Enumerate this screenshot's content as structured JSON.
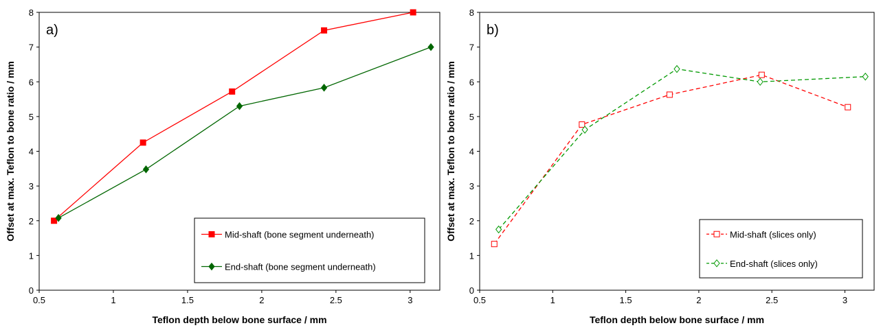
{
  "chart_data": [
    {
      "type": "line",
      "annotation": "a)",
      "xlabel": "Teflon depth below bone surface / mm",
      "ylabel": "Offset at max. Teflon to bone ratio / mm",
      "xlim": [
        0.5,
        3.2
      ],
      "xticks": [
        0.5,
        1,
        1.5,
        2,
        2.5,
        3
      ],
      "ylim": [
        0,
        8
      ],
      "yticks": [
        0,
        1,
        2,
        3,
        4,
        5,
        6,
        7,
        8
      ],
      "legend": "lower right",
      "series": [
        {
          "name": "Mid-shaft (bone segment underneath)",
          "color": "#ff0000",
          "marker": "square",
          "filled": true,
          "dashed": false,
          "x": [
            0.6,
            1.2,
            1.8,
            2.42,
            3.02
          ],
          "values": [
            2.0,
            4.25,
            5.72,
            7.48,
            8.0
          ]
        },
        {
          "name": "End-shaft (bone segment underneath)",
          "color": "#006600",
          "marker": "diamond",
          "filled": true,
          "dashed": false,
          "x": [
            0.63,
            1.22,
            1.85,
            2.42,
            3.14
          ],
          "values": [
            2.08,
            3.48,
            5.3,
            5.83,
            7.0
          ]
        }
      ]
    },
    {
      "type": "line",
      "annotation": "b)",
      "xlabel": "Teflon depth below bone surface / mm",
      "ylabel": "Offset at max. Teflon to bone ratio / mm",
      "xlim": [
        0.5,
        3.2
      ],
      "xticks": [
        0.5,
        1,
        1.5,
        2,
        2.5,
        3
      ],
      "ylim": [
        0,
        8
      ],
      "yticks": [
        0,
        1,
        2,
        3,
        4,
        5,
        6,
        7,
        8
      ],
      "legend": "lower right",
      "series": [
        {
          "name": "Mid-shaft (slices only)",
          "color": "#ff0000",
          "marker": "square",
          "filled": false,
          "dashed": true,
          "x": [
            0.6,
            1.2,
            1.8,
            2.43,
            3.02
          ],
          "values": [
            1.33,
            4.77,
            5.63,
            6.2,
            5.27
          ]
        },
        {
          "name": "End-shaft (slices only)",
          "color": "#009900",
          "marker": "diamond",
          "filled": false,
          "dashed": true,
          "x": [
            0.63,
            1.22,
            1.85,
            2.42,
            3.14
          ],
          "values": [
            1.75,
            4.62,
            6.37,
            6.0,
            6.15
          ]
        }
      ]
    }
  ]
}
